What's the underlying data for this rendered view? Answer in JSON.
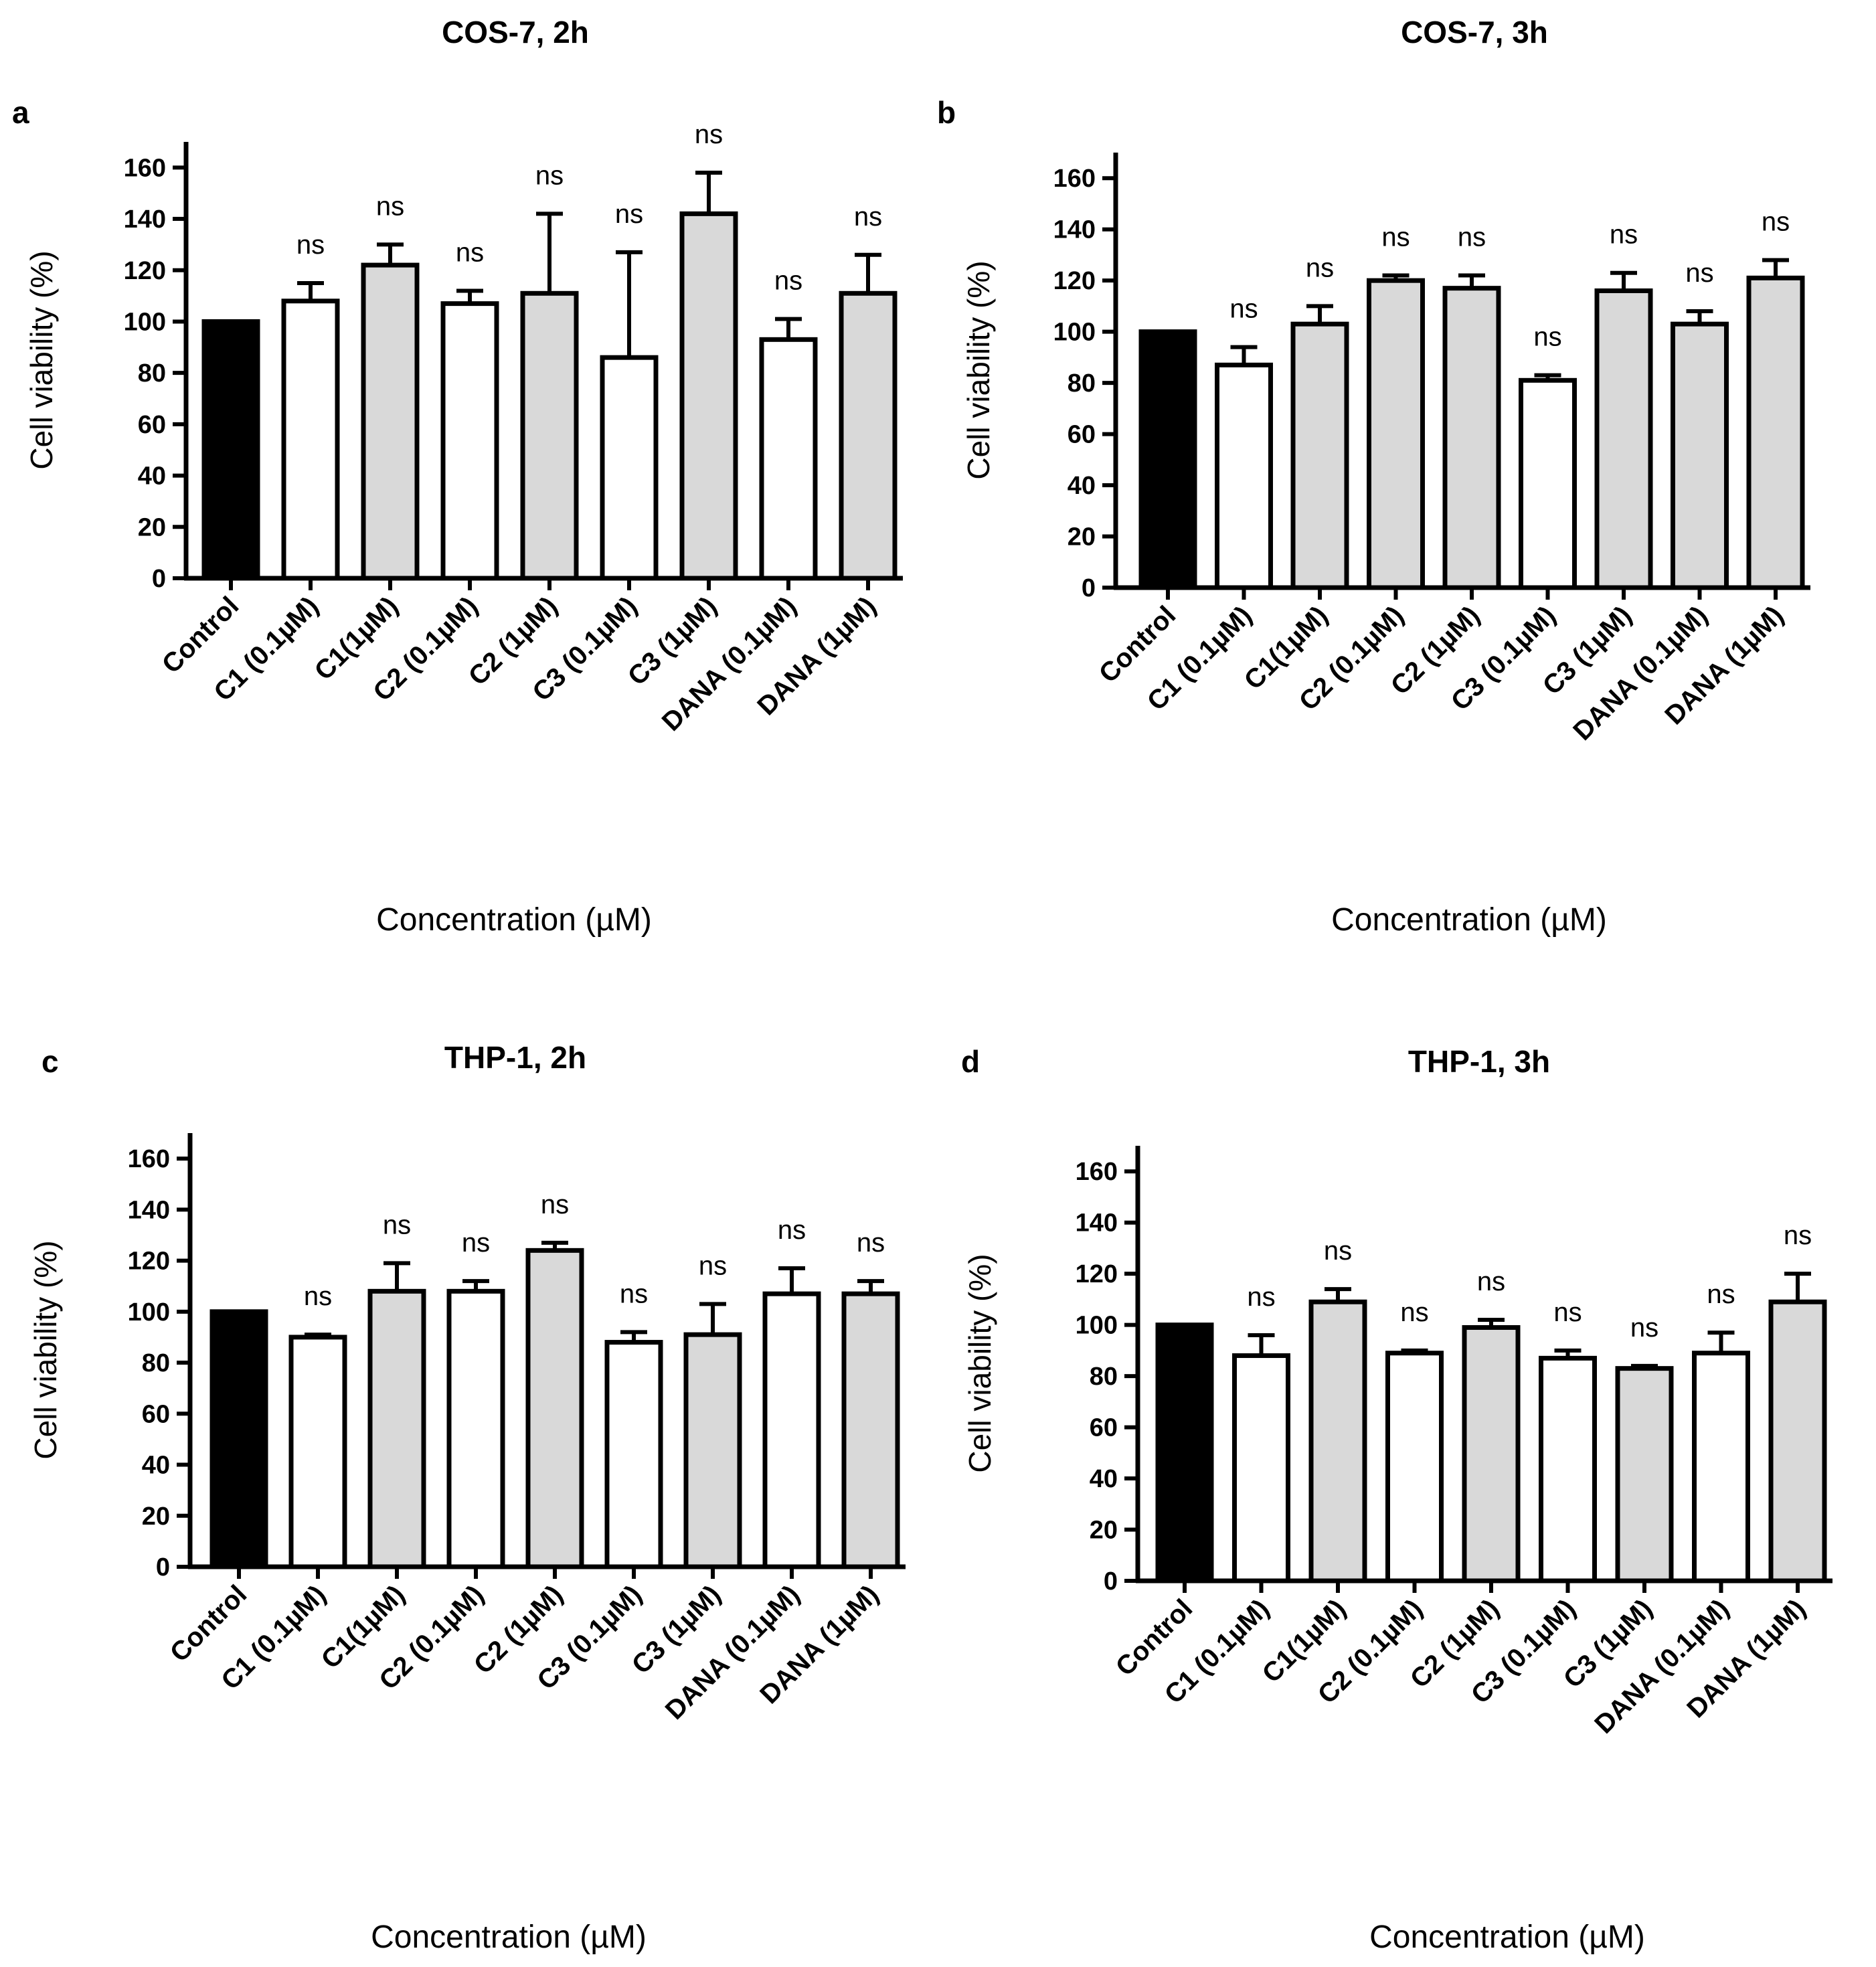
{
  "colors": {
    "control": "#000000",
    "white_bar": "#ffffff",
    "gray_bar": "#d9d9d9",
    "stroke": "#000000"
  },
  "chart_data": [
    {
      "type": "bar",
      "panel": "a",
      "title": "COS-7, 2h",
      "xlabel": "Concentration (µM)",
      "ylabel": "Cell viability (%)",
      "ylim": [
        0,
        170
      ],
      "yticks": [
        0,
        20,
        40,
        60,
        80,
        100,
        120,
        140,
        160
      ],
      "categories": [
        "Control",
        "C1 (0.1µM)",
        "C1(1µM)",
        "C2 (0.1µM)",
        "C2 (1µM)",
        "C3 (0.1µM)",
        "C3 (1µM)",
        "DANA (0.1µM)",
        "DANA (1µM)"
      ],
      "values": [
        100,
        108,
        122,
        107,
        111,
        86,
        142,
        93,
        111
      ],
      "errors": [
        0,
        7,
        8,
        5,
        31,
        41,
        16,
        8,
        15
      ],
      "bar_fill": [
        "control",
        "white_bar",
        "gray_bar",
        "white_bar",
        "gray_bar",
        "white_bar",
        "gray_bar",
        "white_bar",
        "gray_bar"
      ],
      "annotations": [
        "",
        "ns",
        "ns",
        "ns",
        "ns",
        "ns",
        "ns",
        "ns",
        "ns"
      ]
    },
    {
      "type": "bar",
      "panel": "b",
      "title": "COS-7, 3h",
      "xlabel": "Concentration (µM)",
      "ylabel": "Cell viability (%)",
      "ylim": [
        0,
        170
      ],
      "yticks": [
        0,
        20,
        40,
        60,
        80,
        100,
        120,
        140,
        160
      ],
      "categories": [
        "Control",
        "C1 (0.1µM)",
        "C1(1µM)",
        "C2 (0.1µM)",
        "C2 (1µM)",
        "C3 (0.1µM)",
        "C3 (1µM)",
        "DANA (0.1µM)",
        "DANA (1µM)"
      ],
      "values": [
        100,
        87,
        103,
        120,
        117,
        81,
        116,
        103,
        121
      ],
      "errors": [
        0,
        7,
        7,
        2,
        5,
        2,
        7,
        5,
        7
      ],
      "bar_fill": [
        "control",
        "white_bar",
        "gray_bar",
        "gray_bar",
        "gray_bar",
        "white_bar",
        "gray_bar",
        "gray_bar",
        "gray_bar"
      ],
      "annotations": [
        "",
        "ns",
        "ns",
        "ns",
        "ns",
        "ns",
        "ns",
        "ns",
        "ns"
      ]
    },
    {
      "type": "bar",
      "panel": "c",
      "title": "THP-1, 2h",
      "xlabel": "Concentration (µM)",
      "ylabel": "Cell viability (%)",
      "ylim": [
        0,
        170
      ],
      "yticks": [
        0,
        20,
        40,
        60,
        80,
        100,
        120,
        140,
        160
      ],
      "categories": [
        "Control",
        "C1 (0.1µM)",
        "C1(1µM)",
        "C2 (0.1µM)",
        "C2 (1µM)",
        "C3 (0.1µM)",
        "C3 (1µM)",
        "DANA (0.1µM)",
        "DANA (1µM)"
      ],
      "values": [
        100,
        90,
        108,
        108,
        124,
        88,
        91,
        107,
        107
      ],
      "errors": [
        0,
        1,
        11,
        4,
        3,
        4,
        12,
        10,
        5
      ],
      "bar_fill": [
        "control",
        "white_bar",
        "gray_bar",
        "white_bar",
        "gray_bar",
        "white_bar",
        "gray_bar",
        "white_bar",
        "gray_bar"
      ],
      "annotations": [
        "",
        "ns",
        "ns",
        "ns",
        "ns",
        "ns",
        "ns",
        "ns",
        "ns"
      ]
    },
    {
      "type": "bar",
      "panel": "d",
      "title": "THP-1, 3h",
      "xlabel": "Concentration (µM)",
      "ylabel": "Cell viability (%)",
      "ylim": [
        0,
        170
      ],
      "yticks": [
        0,
        20,
        40,
        60,
        80,
        100,
        120,
        140,
        160
      ],
      "categories": [
        "Control",
        "C1 (0.1µM)",
        "C1(1µM)",
        "C2 (0.1µM)",
        "C2 (1µM)",
        "C3 (0.1µM)",
        "C3 (1µM)",
        "DANA (0.1µM)",
        "DANA (1µM)"
      ],
      "values": [
        100,
        88,
        109,
        89,
        99,
        87,
        83,
        89,
        109
      ],
      "errors": [
        0,
        8,
        5,
        1,
        3,
        3,
        1,
        8,
        11
      ],
      "bar_fill": [
        "control",
        "white_bar",
        "gray_bar",
        "white_bar",
        "gray_bar",
        "white_bar",
        "gray_bar",
        "white_bar",
        "gray_bar"
      ],
      "annotations": [
        "",
        "ns",
        "ns",
        "ns",
        "ns",
        "ns",
        "ns",
        "ns",
        "ns"
      ]
    }
  ]
}
